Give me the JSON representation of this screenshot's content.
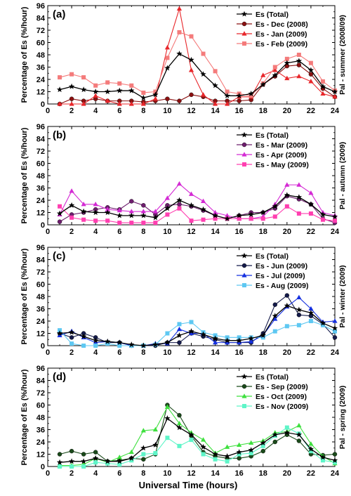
{
  "figure": {
    "xlabel": "Universal Time (hours)",
    "colors": {
      "total": "#000000",
      "summer": [
        "#8b1010",
        "#e8262a",
        "#f47b7b"
      ],
      "autumn": [
        "#6e1d6e",
        "#d42ad4",
        "#ff3fb0"
      ],
      "winter": [
        "#141a4a",
        "#1530e0",
        "#5ec8f2"
      ],
      "spring": [
        "#1a4a1a",
        "#3ee03e",
        "#5ef5c8"
      ]
    }
  },
  "chart_data": [
    {
      "type": "line",
      "panel_label": "(a)",
      "side_label": "Pal - summer (2008/09)",
      "ylabel": "Percentage of Es (%/hour)",
      "xlim": [
        0,
        24
      ],
      "ylim": [
        0,
        96
      ],
      "xticks": [
        "0",
        "2",
        "4",
        "6",
        "8",
        "10",
        "12",
        "14",
        "16",
        "18",
        "20",
        "22",
        "24"
      ],
      "yticks": [
        "0",
        "12",
        "24",
        "36",
        "48",
        "60",
        "72",
        "84",
        "96"
      ],
      "legend_position": "top-right",
      "x": [
        1,
        2,
        3,
        4,
        5,
        6,
        7,
        8,
        9,
        10,
        11,
        12,
        13,
        14,
        15,
        16,
        17,
        18,
        19,
        20,
        21,
        22,
        23,
        24
      ],
      "series": [
        {
          "name": "Es (Total)",
          "marker": "star",
          "values": [
            14,
            17,
            14,
            12,
            12,
            13,
            13,
            6,
            9,
            35,
            49,
            43,
            29,
            18,
            8,
            8,
            10,
            19,
            28,
            40,
            42,
            33,
            17,
            12
          ]
        },
        {
          "name": "Es - Dec (2008)",
          "marker": "circle",
          "values": [
            0,
            5,
            3,
            5,
            3,
            3,
            3,
            2,
            3,
            5,
            3,
            9,
            7,
            3,
            3,
            3,
            4,
            19,
            27,
            37,
            38,
            29,
            15,
            7
          ]
        },
        {
          "name": "Es - Jan (2009)",
          "marker": "triangle",
          "values": [
            0,
            0,
            0,
            8,
            3,
            0,
            0,
            0,
            5,
            55,
            93,
            33,
            9,
            0,
            0,
            7,
            7,
            28,
            33,
            25,
            27,
            22,
            10,
            7
          ]
        },
        {
          "name": "Es - Feb (2009)",
          "marker": "square",
          "values": [
            26,
            29,
            26,
            18,
            21,
            20,
            18,
            11,
            12,
            45,
            70,
            66,
            49,
            32,
            12,
            10,
            8,
            20,
            36,
            44,
            48,
            40,
            22,
            13
          ]
        }
      ]
    },
    {
      "type": "line",
      "panel_label": "(b)",
      "side_label": "Pal - autumn (2009)",
      "ylabel": "Percentage of Es (%/hour)",
      "xlim": [
        0,
        24
      ],
      "ylim": [
        0,
        96
      ],
      "xticks": [
        "0",
        "2",
        "4",
        "6",
        "8",
        "10",
        "12",
        "14",
        "16",
        "18",
        "20",
        "22",
        "24"
      ],
      "yticks": [
        "0",
        "12",
        "24",
        "36",
        "48",
        "60",
        "72",
        "84",
        "96"
      ],
      "legend_position": "top-right",
      "x": [
        1,
        2,
        3,
        4,
        5,
        6,
        7,
        8,
        9,
        10,
        11,
        12,
        13,
        14,
        15,
        16,
        17,
        18,
        19,
        20,
        21,
        22,
        23,
        24
      ],
      "series": [
        {
          "name": "Es (Total)",
          "marker": "star",
          "values": [
            11,
            19,
            13,
            12,
            12,
            9,
            9,
            9,
            7,
            16,
            24,
            19,
            15,
            9,
            6,
            9,
            10,
            12,
            18,
            29,
            27,
            20,
            10,
            8
          ]
        },
        {
          "name": "Es - Mar (2009)",
          "marker": "circle",
          "values": [
            3,
            10,
            12,
            15,
            17,
            15,
            23,
            19,
            10,
            19,
            20,
            18,
            14,
            9,
            6,
            9,
            12,
            12,
            16,
            28,
            25,
            20,
            6,
            2
          ]
        },
        {
          "name": "Es - Apr (2009)",
          "marker": "triangle",
          "values": [
            10,
            33,
            20,
            20,
            15,
            14,
            13,
            13,
            13,
            26,
            40,
            30,
            23,
            12,
            9,
            6,
            6,
            8,
            20,
            39,
            39,
            31,
            12,
            9
          ]
        },
        {
          "name": "Es - May (2009)",
          "marker": "square",
          "values": [
            18,
            7,
            5,
            4,
            4,
            2,
            2,
            2,
            2,
            10,
            16,
            4,
            5,
            6,
            6,
            6,
            6,
            6,
            8,
            18,
            11,
            11,
            5,
            4
          ]
        }
      ]
    },
    {
      "type": "line",
      "panel_label": "(c)",
      "side_label": "Pal - winter (2009)",
      "ylabel": "Percentage of Es (%/hour)",
      "xlim": [
        0,
        24
      ],
      "ylim": [
        0,
        96
      ],
      "xticks": [
        "0",
        "2",
        "4",
        "6",
        "8",
        "10",
        "12",
        "14",
        "16",
        "18",
        "20",
        "22",
        "24"
      ],
      "yticks": [
        "0",
        "12",
        "24",
        "36",
        "48",
        "60",
        "72",
        "84",
        "96"
      ],
      "legend_position": "top-right",
      "x": [
        1,
        2,
        3,
        4,
        5,
        6,
        7,
        8,
        9,
        10,
        11,
        12,
        13,
        14,
        15,
        16,
        17,
        18,
        19,
        20,
        21,
        22,
        23,
        24
      ],
      "series": [
        {
          "name": "Es (Total)",
          "marker": "star",
          "values": [
            12,
            13,
            9,
            5,
            4,
            3,
            1,
            0,
            1,
            3,
            10,
            14,
            11,
            7,
            5,
            5,
            7,
            10,
            29,
            39,
            35,
            32,
            22,
            17
          ]
        },
        {
          "name": "Es - Jun (2009)",
          "marker": "circle",
          "values": [
            12,
            8,
            12,
            8,
            3,
            3,
            0,
            0,
            0,
            3,
            3,
            12,
            9,
            6,
            3,
            3,
            3,
            12,
            40,
            49,
            30,
            29,
            21,
            8
          ]
        },
        {
          "name": "Es - Jul (2009)",
          "marker": "triangle",
          "values": [
            10,
            14,
            8,
            3,
            4,
            3,
            0,
            0,
            2,
            2,
            16,
            12,
            12,
            3,
            3,
            3,
            4,
            10,
            26,
            38,
            47,
            36,
            23,
            24
          ]
        },
        {
          "name": "Es - Aug (2009)",
          "marker": "square",
          "values": [
            15,
            2,
            0,
            0,
            2,
            0,
            0,
            0,
            1,
            12,
            21,
            23,
            13,
            10,
            8,
            8,
            8,
            8,
            14,
            19,
            20,
            24,
            20,
            14
          ]
        }
      ]
    },
    {
      "type": "line",
      "panel_label": "(d)",
      "side_label": "Pal - spring (2009)",
      "ylabel": "Percentage of Es (%/hour)",
      "xlim": [
        0,
        24
      ],
      "ylim": [
        0,
        96
      ],
      "xticks": [
        "0",
        "2",
        "4",
        "6",
        "8",
        "10",
        "12",
        "14",
        "16",
        "18",
        "20",
        "22",
        "24"
      ],
      "yticks": [
        "0",
        "12",
        "24",
        "36",
        "48",
        "60",
        "72",
        "84",
        "96"
      ],
      "legend_position": "top-right",
      "x": [
        1,
        2,
        3,
        4,
        5,
        6,
        7,
        8,
        9,
        10,
        11,
        12,
        13,
        14,
        15,
        16,
        17,
        18,
        19,
        20,
        21,
        22,
        23,
        24
      ],
      "series": [
        {
          "name": "Es (Total)",
          "marker": "star",
          "values": [
            4,
            5,
            5,
            8,
            5,
            5,
            8,
            18,
            21,
            47,
            38,
            31,
            19,
            12,
            10,
            14,
            16,
            23,
            31,
            33,
            31,
            17,
            9,
            6
          ]
        },
        {
          "name": "Es - Sep (2009)",
          "marker": "circle",
          "values": [
            12,
            15,
            12,
            14,
            5,
            6,
            8,
            7,
            12,
            60,
            50,
            30,
            14,
            10,
            8,
            8,
            10,
            15,
            24,
            31,
            25,
            12,
            11,
            12
          ]
        },
        {
          "name": "Es - Oct (2009)",
          "marker": "triangle",
          "values": [
            1,
            1,
            2,
            8,
            4,
            9,
            14,
            35,
            36,
            58,
            42,
            33,
            26,
            13,
            19,
            21,
            23,
            25,
            33,
            34,
            40,
            22,
            10,
            3
          ]
        },
        {
          "name": "Es - Nov (2009)",
          "marker": "square",
          "values": [
            0,
            0,
            0,
            4,
            3,
            2,
            6,
            12,
            13,
            28,
            20,
            26,
            12,
            7,
            5,
            12,
            13,
            20,
            30,
            38,
            32,
            15,
            6,
            4
          ]
        }
      ]
    }
  ]
}
